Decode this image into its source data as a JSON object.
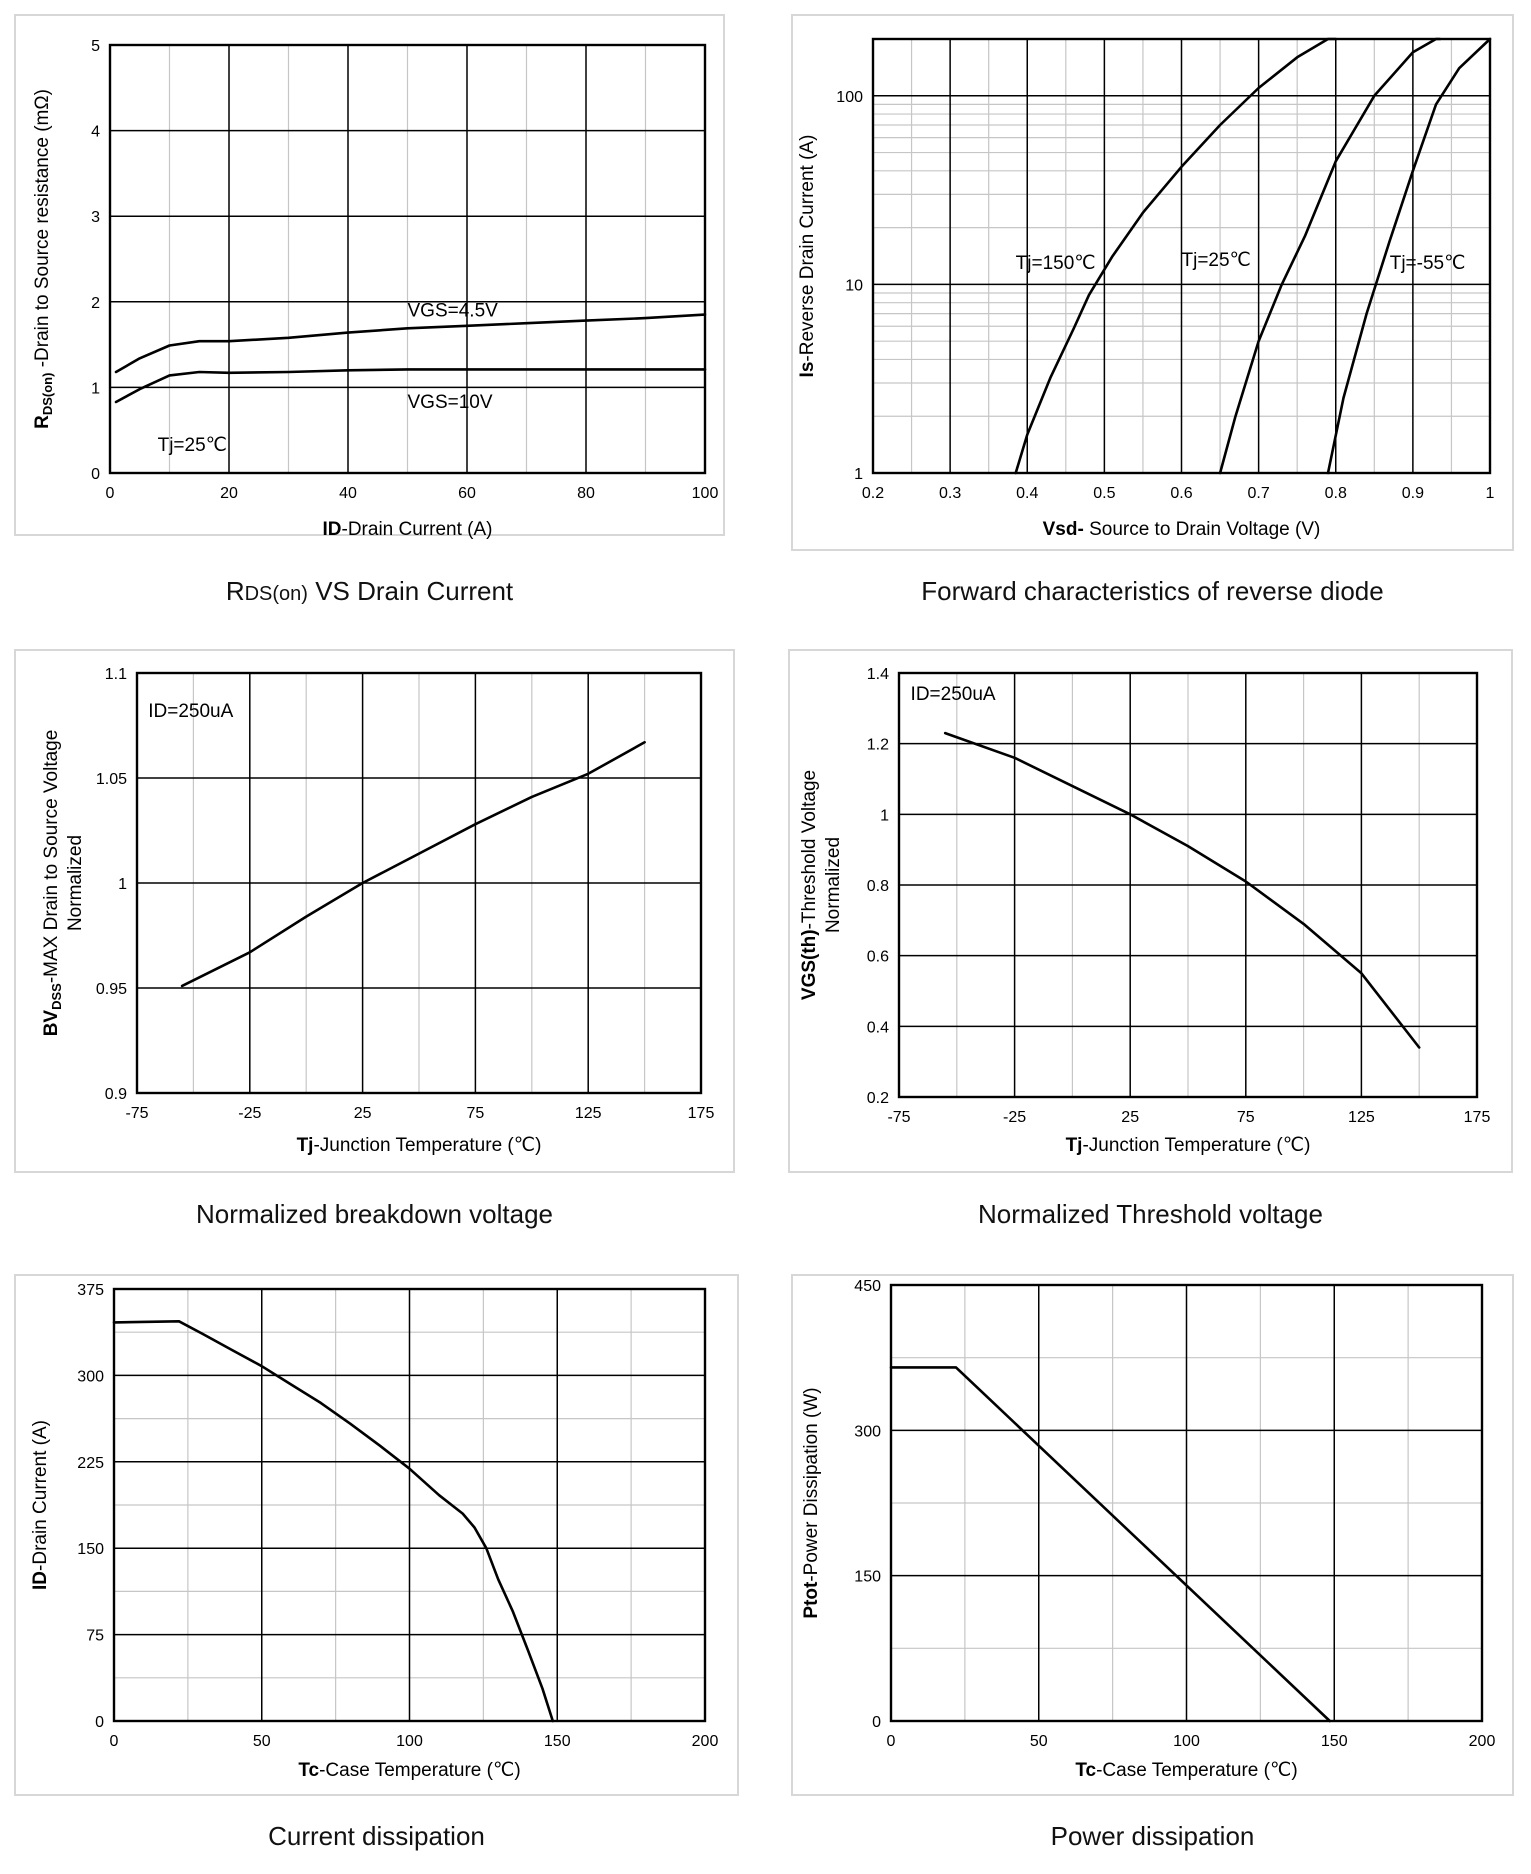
{
  "chart_data": [
    {
      "type": "line",
      "caption": "RDS(on) VS Drain Current",
      "caption_parts": {
        "main": "R",
        "sub": "DS(on)",
        "rest": " VS Drain Current"
      },
      "xlabel_parts": {
        "bold": "ID",
        "rest": "-Drain Current  (A)"
      },
      "ylabel_parts": {
        "bold": "R",
        "boldsub": "DS(on)",
        "rest": " -Drain to Source resistance  (mΩ)"
      },
      "xlim": [
        0,
        100
      ],
      "ylim": [
        0,
        5
      ],
      "xticks": [
        0,
        20,
        40,
        60,
        80,
        100
      ],
      "xticklabels": [
        "0",
        "20",
        "40",
        "60",
        "80",
        "100"
      ],
      "yticks": [
        0,
        1,
        2,
        3,
        4,
        5
      ],
      "yticklabels": [
        "0",
        "1",
        "2",
        "3",
        "4",
        "5"
      ],
      "xminor": [
        10,
        30,
        50,
        70,
        90
      ],
      "series": [
        {
          "name": "VGS=4.5V",
          "x": [
            1,
            5,
            10,
            15,
            20,
            30,
            40,
            50,
            60,
            70,
            80,
            90,
            100
          ],
          "y": [
            1.18,
            1.34,
            1.49,
            1.54,
            1.54,
            1.58,
            1.64,
            1.69,
            1.72,
            1.75,
            1.78,
            1.81,
            1.85
          ]
        },
        {
          "name": "VGS=10V",
          "x": [
            1,
            5,
            10,
            15,
            20,
            30,
            40,
            50,
            60,
            70,
            80,
            90,
            100
          ],
          "y": [
            0.83,
            0.98,
            1.14,
            1.18,
            1.17,
            1.18,
            1.2,
            1.21,
            1.21,
            1.21,
            1.21,
            1.21,
            1.21
          ]
        }
      ],
      "annotations": [
        {
          "text": "VGS=4.5V",
          "x": 50,
          "y": 1.9
        },
        {
          "text": "VGS=10V",
          "x": 50,
          "y": 0.83
        },
        {
          "text": "Tj=25℃",
          "x": 8,
          "y": 0.33
        }
      ]
    },
    {
      "type": "line",
      "yscale": "log",
      "caption": "Forward characteristics of reverse diode",
      "xlabel_parts": {
        "bold": "Vsd-",
        "rest": " Source to Drain Voltage (V)"
      },
      "ylabel_parts": {
        "bold": "Is",
        "rest": "-Reverse  Drain Current  (A)"
      },
      "xlim": [
        0.2,
        1.0
      ],
      "ylim": [
        1,
        200
      ],
      "xticks": [
        0.2,
        0.3,
        0.4,
        0.5,
        0.6,
        0.7,
        0.8,
        0.9,
        1.0
      ],
      "xticklabels": [
        "0.2",
        "0.3",
        "0.4",
        "0.5",
        "0.6",
        "0.7",
        "0.8",
        "0.9",
        "1"
      ],
      "xminor": [
        0.25,
        0.35,
        0.45,
        0.55,
        0.65,
        0.75,
        0.85,
        0.95
      ],
      "yticks": [
        1,
        10,
        100
      ],
      "yticklabels": [
        "1",
        "10",
        "100"
      ],
      "series": [
        {
          "name": "Tj=150℃",
          "x": [
            0.385,
            0.4,
            0.43,
            0.46,
            0.48,
            0.51,
            0.55,
            0.6,
            0.65,
            0.7,
            0.75,
            0.79,
            0.8
          ],
          "y": [
            1.0,
            1.6,
            3.2,
            5.8,
            8.8,
            14,
            24,
            42,
            70,
            110,
            160,
            200,
            200
          ]
        },
        {
          "name": "Tj=25℃",
          "x": [
            0.65,
            0.67,
            0.7,
            0.73,
            0.76,
            0.8,
            0.85,
            0.9,
            0.93,
            0.935
          ],
          "y": [
            1.0,
            2.0,
            5.0,
            10,
            18,
            45,
            100,
            170,
            200,
            200
          ]
        },
        {
          "name": "Tj=-55℃",
          "x": [
            0.79,
            0.81,
            0.84,
            0.87,
            0.9,
            0.93,
            0.96,
            1.0
          ],
          "y": [
            1.0,
            2.5,
            7.0,
            17,
            40,
            90,
            140,
            200
          ]
        }
      ],
      "annotations": [
        {
          "text": "Tj=150℃",
          "x": 0.385,
          "y": 13
        },
        {
          "text": "Tj=25℃",
          "x": 0.6,
          "y": 13.5
        },
        {
          "text": "Tj=-55℃",
          "x": 0.87,
          "y": 13
        }
      ]
    },
    {
      "type": "line",
      "caption": "Normalized breakdown voltage",
      "xlabel_parts": {
        "bold": "Tj",
        "rest": "-Junction  Temperature  (℃)"
      },
      "ylabel_parts": {
        "bold": "BV",
        "boldsub": "DSS",
        "rest": "-MAX Drain to Source Voltage",
        "line2": "Normalized"
      },
      "xlim": [
        -75,
        175
      ],
      "ylim": [
        0.9,
        1.1
      ],
      "xticks": [
        -75,
        -25,
        25,
        75,
        125,
        175
      ],
      "xticklabels": [
        "-75",
        "-25",
        "25",
        "75",
        "125",
        "175"
      ],
      "xminor": [
        -50,
        0,
        50,
        100,
        150
      ],
      "yticks": [
        0.9,
        0.95,
        1.0,
        1.05,
        1.1
      ],
      "yticklabels": [
        "0.9",
        "0.95",
        "1",
        "1.05",
        "1.1"
      ],
      "series": [
        {
          "name": "BVDSS",
          "x": [
            -55,
            -25,
            0,
            25,
            50,
            75,
            100,
            125,
            150
          ],
          "y": [
            0.951,
            0.967,
            0.984,
            1.0,
            1.014,
            1.028,
            1.041,
            1.052,
            1.067
          ]
        }
      ],
      "annotations": [
        {
          "text": "ID=250uA",
          "x": -70,
          "y": 1.082
        }
      ]
    },
    {
      "type": "line",
      "caption": "Normalized Threshold voltage",
      "xlabel_parts": {
        "bold": "Tj",
        "rest": "-Junction  Temperature  (℃)"
      },
      "ylabel_parts": {
        "bold": "VGS(th)",
        "rest": "-Threshold  Voltage",
        "line2": "Normalized"
      },
      "xlim": [
        -75,
        175
      ],
      "ylim": [
        0.2,
        1.4
      ],
      "xticks": [
        -75,
        -25,
        25,
        75,
        125,
        175
      ],
      "xticklabels": [
        "-75",
        "-25",
        "25",
        "75",
        "125",
        "175"
      ],
      "xminor": [
        -50,
        0,
        50,
        100,
        150
      ],
      "yticks": [
        0.2,
        0.4,
        0.6,
        0.8,
        1.0,
        1.2,
        1.4
      ],
      "yticklabels": [
        "0.2",
        "0.4",
        "0.6",
        "0.8",
        "1",
        "1.2",
        "1.4"
      ],
      "series": [
        {
          "name": "VGS(th)",
          "x": [
            -55,
            -25,
            0,
            25,
            50,
            75,
            100,
            125,
            150
          ],
          "y": [
            1.23,
            1.16,
            1.08,
            1.0,
            0.91,
            0.81,
            0.69,
            0.55,
            0.34
          ]
        }
      ],
      "annotations": [
        {
          "text": "ID=250uA",
          "x": -70,
          "y": 1.34
        }
      ]
    },
    {
      "type": "line",
      "caption": "Current dissipation",
      "xlabel_parts": {
        "bold": "Tc",
        "rest": "-Case Temperature  (℃)"
      },
      "ylabel_parts": {
        "bold": "ID",
        "rest": "-Drain Current  (A)"
      },
      "xlim": [
        0,
        200
      ],
      "ylim": [
        0,
        375
      ],
      "xticks": [
        0,
        50,
        100,
        150,
        200
      ],
      "xticklabels": [
        "0",
        "50",
        "100",
        "150",
        "200"
      ],
      "xminor": [
        25,
        75,
        125,
        175
      ],
      "yticks": [
        0,
        75,
        150,
        225,
        300,
        375
      ],
      "yticklabels": [
        "0",
        "75",
        "150",
        "225",
        "300",
        "375"
      ],
      "yminor": [
        37.5,
        112.5,
        187.5,
        262.5,
        337.5
      ],
      "series": [
        {
          "name": "ID",
          "x": [
            0,
            22,
            30,
            40,
            50,
            60,
            70,
            80,
            90,
            100,
            110,
            118,
            122,
            126,
            130,
            135,
            140,
            145,
            148.5
          ],
          "y": [
            346,
            347,
            336,
            322,
            308,
            292,
            276,
            258,
            239,
            219,
            196,
            180,
            168,
            150,
            123,
            95,
            62,
            28,
            0
          ]
        }
      ],
      "annotations": []
    },
    {
      "type": "line",
      "caption": "Power dissipation",
      "xlabel_parts": {
        "bold": "Tc",
        "rest": "-Case Temperature  (℃)"
      },
      "ylabel_parts": {
        "bold": "Ptot",
        "rest": "-Power Dissipation  (W)"
      },
      "xlim": [
        0,
        200
      ],
      "ylim": [
        0,
        450
      ],
      "xticks": [
        0,
        50,
        100,
        150,
        200
      ],
      "xticklabels": [
        "0",
        "50",
        "100",
        "150",
        "200"
      ],
      "xminor": [
        25,
        75,
        125,
        175
      ],
      "yticks": [
        0,
        150,
        300,
        450
      ],
      "yticklabels": [
        "0",
        "150",
        "300",
        "450"
      ],
      "yminor": [
        75,
        225,
        375
      ],
      "series": [
        {
          "name": "Ptot",
          "x": [
            0,
            22,
            148.5
          ],
          "y": [
            365,
            365,
            0
          ]
        }
      ],
      "annotations": []
    }
  ]
}
